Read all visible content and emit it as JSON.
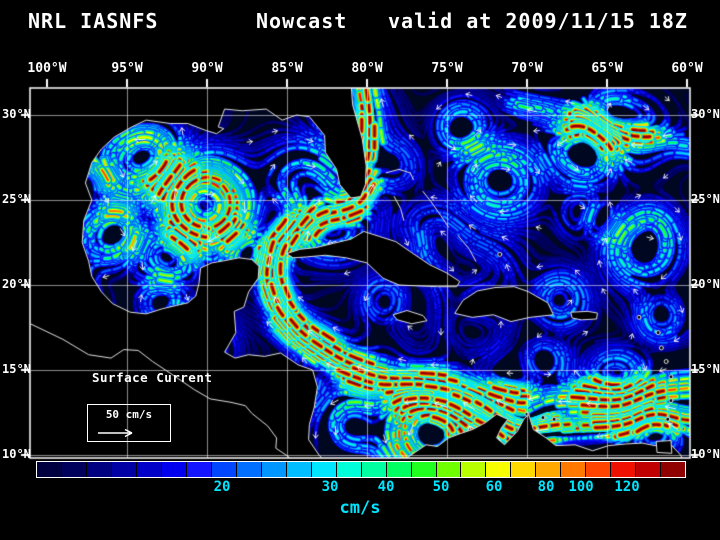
{
  "title": {
    "model": "NRL IASNFS",
    "product": "Nowcast",
    "valid": "valid at 2009/11/15 18Z"
  },
  "axes": {
    "lon_labels": [
      "100°W",
      "95°W",
      "90°W",
      "85°W",
      "80°W",
      "75°W",
      "70°W",
      "65°W",
      "60°W"
    ],
    "lat_labels": [
      "30°N",
      "25°N",
      "20°N",
      "15°N",
      "10°N"
    ]
  },
  "map_annotations": {
    "field_label": "Surface Current",
    "scale_value": "50 cm/s"
  },
  "colorbar": {
    "units": "cm/s",
    "tick_labels": [
      "20",
      "30",
      "40",
      "50",
      "60",
      "80",
      "100",
      "120"
    ],
    "cells": [
      "#000040",
      "#00005c",
      "#000080",
      "#0000a4",
      "#0000c8",
      "#0000ee",
      "#1414ff",
      "#0046ff",
      "#006eff",
      "#0096ff",
      "#00beff",
      "#00e6ff",
      "#00ffd8",
      "#00ffa0",
      "#00ff60",
      "#20ff20",
      "#70ff00",
      "#b8ff00",
      "#f8ff00",
      "#ffd800",
      "#ffa800",
      "#ff7800",
      "#ff4400",
      "#f01000",
      "#c00000",
      "#900000"
    ]
  },
  "colors": {
    "background": "#000000",
    "frame": "#ffffff",
    "label_text": "#ffffff",
    "tick_text": "#00e5ff",
    "ocean": "#000720",
    "coastline": "#e0e0e0",
    "grid_line": "#ffffff",
    "land": "#000000"
  }
}
